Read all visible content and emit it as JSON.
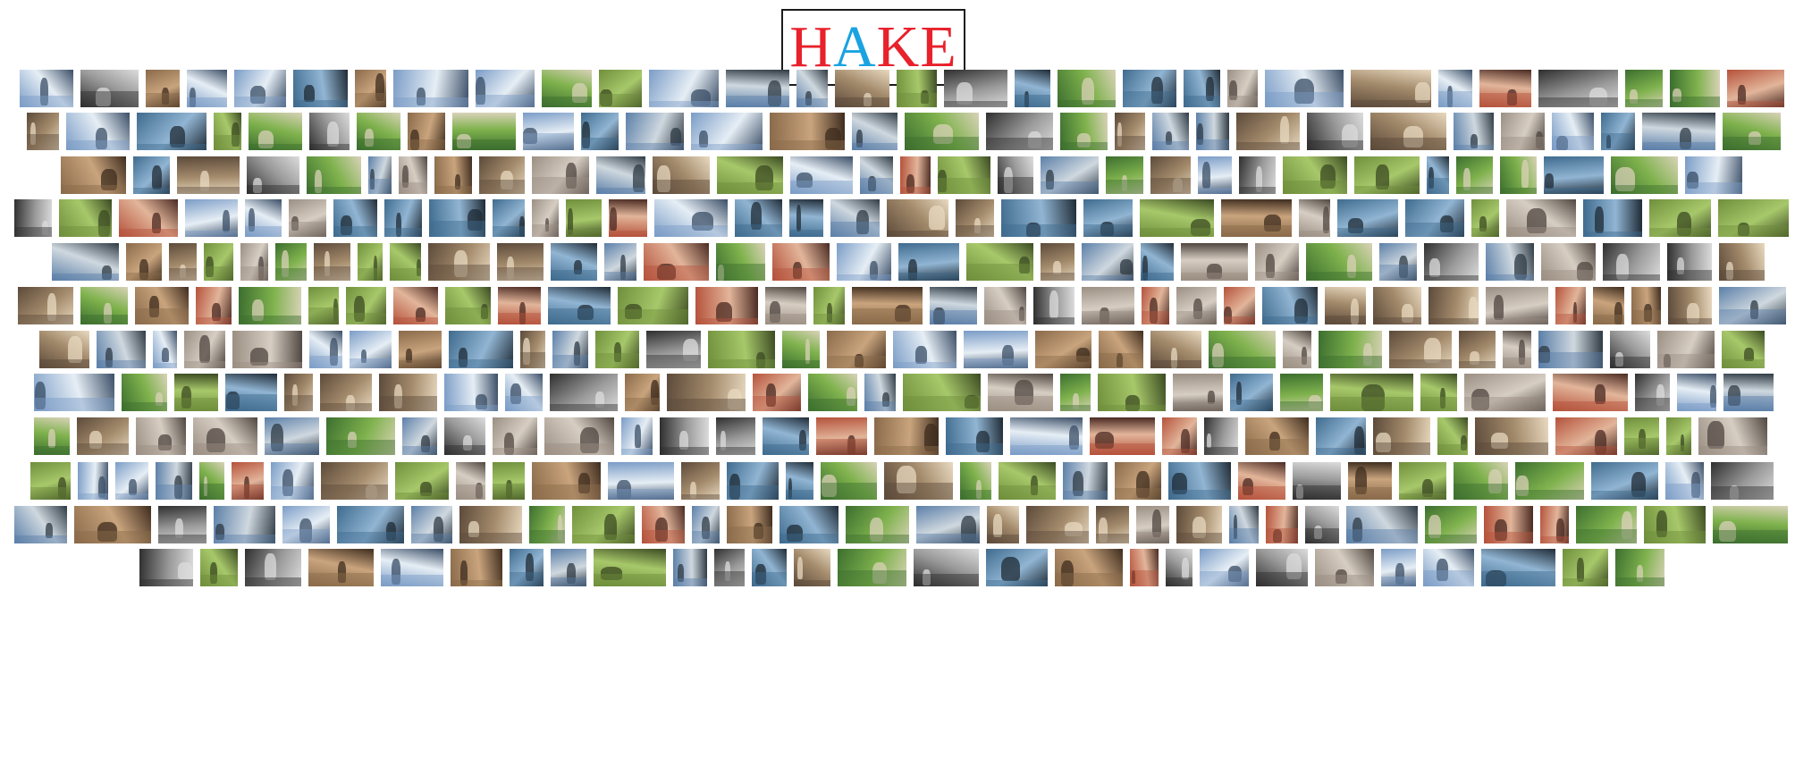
{
  "logo": {
    "letters": [
      {
        "char": "H",
        "color": "#e8212b"
      },
      {
        "char": "A",
        "color": "#1aa3e0"
      },
      {
        "char": "K",
        "color": "#e8212b"
      },
      {
        "char": "E",
        "color": "#e8212b"
      }
    ]
  },
  "mosaic": {
    "rows": [
      {
        "tiles": 30
      },
      {
        "tiles": 30
      },
      {
        "tiles": 31
      },
      {
        "tiles": 31
      },
      {
        "tiles": 32
      },
      {
        "tiles": 33
      },
      {
        "tiles": 31
      },
      {
        "tiles": 29
      },
      {
        "tiles": 30
      },
      {
        "tiles": 32
      },
      {
        "tiles": 31
      },
      {
        "tiles": 27
      }
    ],
    "palette": [
      [
        "#5b7fa8",
        "#cfd8df",
        "#2e3a44"
      ],
      [
        "#6f8f3c",
        "#a7c86a",
        "#3b4a22"
      ],
      [
        "#8a6a4a",
        "#c9a47d",
        "#3e2c1e"
      ],
      [
        "#2f2f2f",
        "#9a9a9a",
        "#dcdcdc"
      ],
      [
        "#3c6e2f",
        "#7fb24d",
        "#d9d2b8"
      ],
      [
        "#b5523b",
        "#e2b59a",
        "#4a2a22"
      ],
      [
        "#7a9cc6",
        "#e6eef5",
        "#3a4d66"
      ],
      [
        "#5c4a3a",
        "#a48b6c",
        "#e8d9c0"
      ],
      [
        "#3f6b8e",
        "#91b5d3",
        "#1f2b36"
      ],
      [
        "#9b8f83",
        "#d7cec3",
        "#4f4640"
      ]
    ]
  }
}
